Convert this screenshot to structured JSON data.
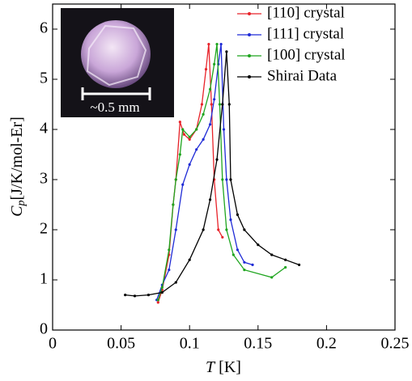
{
  "chart_data": {
    "type": "line",
    "x_label": {
      "symbol": "T",
      "unit": "[K]"
    },
    "y_label": {
      "symbol": "C",
      "subscript": "p",
      "unit": "[J/K/mol-Er]"
    },
    "inset_label": "~0.5 mm",
    "xlim": [
      0,
      0.25
    ],
    "xticks": [
      0,
      0.05,
      0.1,
      0.15,
      0.2,
      0.25
    ],
    "ylim": [
      0,
      6.5
    ],
    "yticks": [
      0,
      1,
      2,
      3,
      4,
      5,
      6
    ],
    "grid": false,
    "legend": "top-right",
    "series": [
      {
        "name": "[110] crystal",
        "color": "#e8232a",
        "x": [
          0.077,
          0.08,
          0.085,
          0.088,
          0.09,
          0.093,
          0.096,
          0.1,
          0.105,
          0.109,
          0.112,
          0.114,
          0.116,
          0.118,
          0.121,
          0.124
        ],
        "values": [
          0.55,
          0.8,
          1.5,
          2.5,
          3.0,
          4.15,
          3.9,
          3.8,
          4.0,
          4.5,
          5.2,
          5.7,
          4.5,
          3.0,
          2.0,
          1.85
        ]
      },
      {
        "name": "[111] crystal",
        "color": "#1f2bd6",
        "x": [
          0.076,
          0.08,
          0.085,
          0.09,
          0.095,
          0.1,
          0.105,
          0.11,
          0.115,
          0.118,
          0.121,
          0.123,
          0.125,
          0.127,
          0.13,
          0.135,
          0.14,
          0.146
        ],
        "values": [
          0.6,
          0.9,
          1.2,
          2.0,
          2.9,
          3.3,
          3.6,
          3.8,
          4.1,
          4.6,
          5.3,
          5.7,
          4.0,
          3.0,
          2.2,
          1.6,
          1.35,
          1.3
        ]
      },
      {
        "name": "[100] crystal",
        "color": "#1fa51f",
        "x": [
          0.077,
          0.08,
          0.085,
          0.088,
          0.09,
          0.093,
          0.095,
          0.1,
          0.105,
          0.11,
          0.115,
          0.118,
          0.12,
          0.122,
          0.124,
          0.127,
          0.132,
          0.14,
          0.16,
          0.17
        ],
        "values": [
          0.6,
          0.85,
          1.6,
          2.5,
          3.0,
          3.5,
          4.0,
          3.85,
          4.0,
          4.3,
          4.8,
          5.3,
          5.7,
          4.5,
          3.0,
          2.0,
          1.5,
          1.2,
          1.05,
          1.25
        ]
      },
      {
        "name": "Shirai Data",
        "color": "#000000",
        "x": [
          0.053,
          0.06,
          0.07,
          0.08,
          0.09,
          0.1,
          0.11,
          0.115,
          0.12,
          0.124,
          0.127,
          0.129,
          0.13,
          0.135,
          0.14,
          0.15,
          0.16,
          0.17,
          0.18
        ],
        "values": [
          0.7,
          0.68,
          0.7,
          0.75,
          0.95,
          1.4,
          2.0,
          2.6,
          3.4,
          4.5,
          5.55,
          4.5,
          3.0,
          2.3,
          2.0,
          1.7,
          1.5,
          1.4,
          1.3
        ]
      }
    ]
  }
}
